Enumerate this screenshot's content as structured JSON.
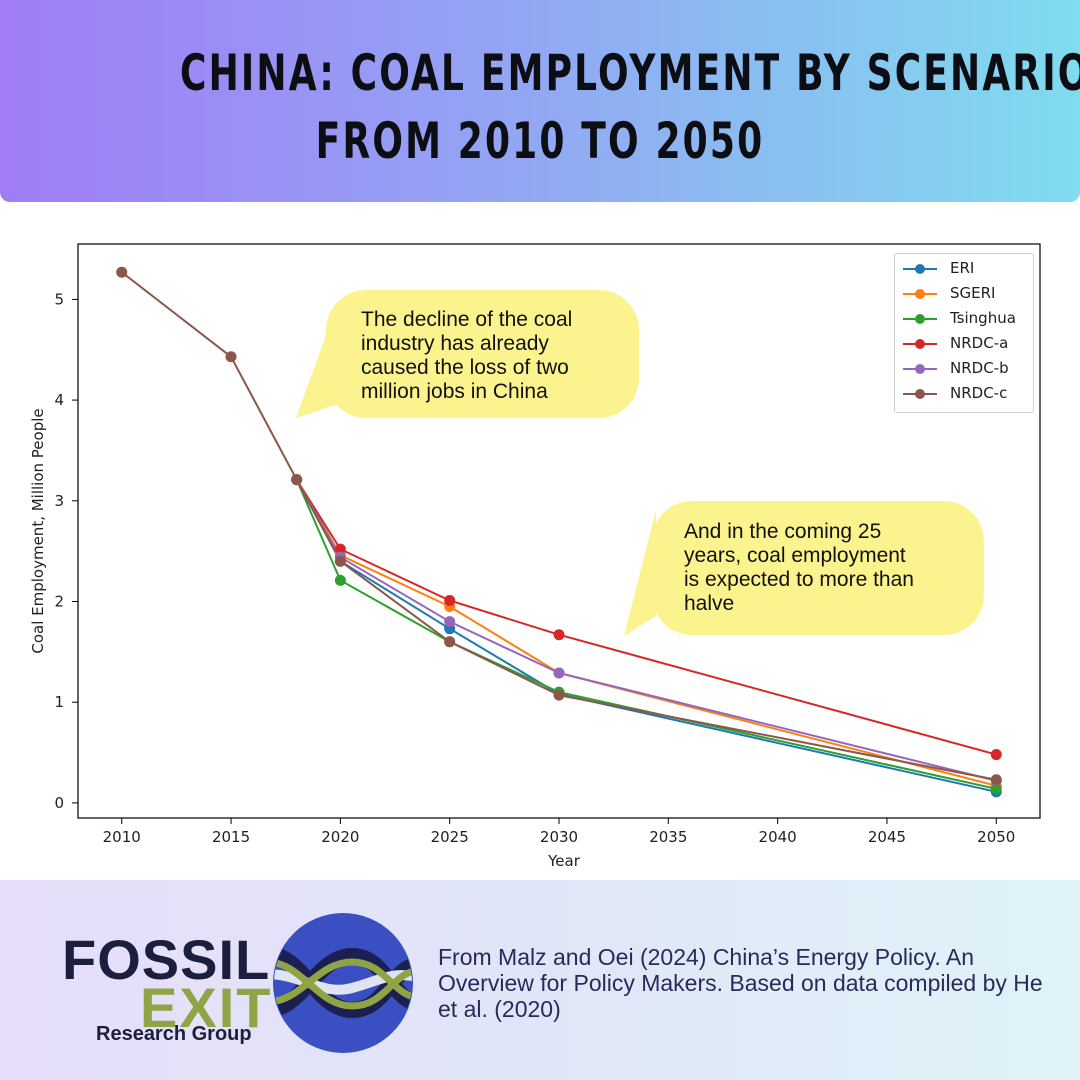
{
  "header": {
    "title_line1": "CHINA: COAL EMPLOYMENT BY SCENARIO",
    "title_line2": "FROM 2010 TO 2050"
  },
  "callouts": {
    "first": [
      "The decline of the coal",
      "industry has already",
      "caused the loss of two",
      "million jobs in China"
    ],
    "second": [
      "And in the coming 25",
      "years, coal employment",
      "is expected to more than",
      "halve"
    ]
  },
  "chart_data": {
    "type": "line",
    "title": "",
    "xlabel": "Year",
    "ylabel": "Coal Employment, Million People",
    "xlim": [
      2008,
      2052
    ],
    "ylim": [
      -0.15,
      5.55
    ],
    "xticks": [
      2010,
      2015,
      2020,
      2025,
      2030,
      2035,
      2040,
      2045,
      2050
    ],
    "yticks": [
      0,
      1,
      2,
      3,
      4,
      5
    ],
    "grid": false,
    "legend_position": "top-right",
    "series": [
      {
        "name": "ERI",
        "color": "#1f77b4",
        "x": [
          2018,
          2020,
          2025,
          2030,
          2050
        ],
        "y": [
          3.21,
          2.4,
          1.73,
          1.08,
          0.11
        ]
      },
      {
        "name": "SGERI",
        "color": "#ff7f0e",
        "x": [
          2018,
          2020,
          2025,
          2030,
          2050
        ],
        "y": [
          3.21,
          2.46,
          1.95,
          1.29,
          0.17
        ]
      },
      {
        "name": "Tsinghua",
        "color": "#2ca02c",
        "x": [
          2018,
          2020,
          2025,
          2030,
          2050
        ],
        "y": [
          3.21,
          2.21,
          1.6,
          1.1,
          0.14
        ]
      },
      {
        "name": "NRDC-a",
        "color": "#d62728",
        "x": [
          2018,
          2020,
          2025,
          2030,
          2050
        ],
        "y": [
          3.21,
          2.52,
          2.01,
          1.67,
          0.48
        ]
      },
      {
        "name": "NRDC-b",
        "color": "#9467bd",
        "x": [
          2018,
          2020,
          2025,
          2030,
          2050
        ],
        "y": [
          3.21,
          2.44,
          1.8,
          1.29,
          0.22
        ]
      },
      {
        "name": "NRDC-c",
        "color": "#8c564b",
        "x": [
          2010,
          2015,
          2018,
          2020,
          2025,
          2030,
          2050
        ],
        "y": [
          5.27,
          4.43,
          3.21,
          2.4,
          1.6,
          1.07,
          0.23
        ]
      }
    ]
  },
  "footer": {
    "logo_line1": "FOSSIL",
    "logo_line2": "EXIT",
    "logo_line3": "Research Group",
    "source": "From Malz and Oei (2024) China’s Energy Policy. An Overview for Policy Makers. Based on data compiled by He et al. (2020)"
  }
}
